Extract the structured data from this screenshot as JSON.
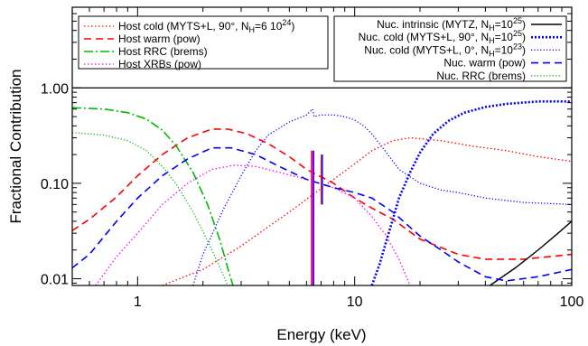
{
  "chart_data": {
    "type": "line",
    "xlabel": "Energy (keV)",
    "ylabel": "Fractional Contribution",
    "xscale": "log",
    "yscale": "log",
    "xlim": [
      0.5,
      100
    ],
    "ylim": [
      0.0085,
      7
    ],
    "x_ticks": [
      {
        "value": 1,
        "label": "1"
      },
      {
        "value": 10,
        "label": "10"
      },
      {
        "value": 100,
        "label": "100"
      }
    ],
    "y_ticks": [
      {
        "value": 0.01,
        "label": "0.01"
      },
      {
        "value": 0.1,
        "label": "0.10"
      },
      {
        "value": 1,
        "label": "1.00"
      }
    ],
    "reference_line": 1.0,
    "legend_left": [
      {
        "id": "host_cold",
        "label": "Host cold (MYTS+L, 90°, N",
        "sub": "H",
        "suffix": "=6 10",
        "sup": "24",
        "tail": ")"
      },
      {
        "id": "host_warm",
        "label": "Host warm (pow)"
      },
      {
        "id": "host_rrc",
        "label": "Host RRC (brems)"
      },
      {
        "id": "host_xrb",
        "label": "Host XRBs (pow)"
      }
    ],
    "legend_right": [
      {
        "id": "nuc_intrinsic",
        "label": "Nuc. intrinsic (MYTZ, N",
        "sub": "H",
        "suffix": "=10",
        "sup": "25",
        "tail": ")"
      },
      {
        "id": "nuc_cold90",
        "label": "Nuc. cold (MYTS+L, 90°, N",
        "sub": "H",
        "suffix": "=10",
        "sup": "25",
        "tail": ")"
      },
      {
        "id": "nuc_cold0",
        "label": "Nuc. cold (MYTS+L,  0°, N",
        "sub": "H",
        "suffix": "=10",
        "sup": "23",
        "tail": ")"
      },
      {
        "id": "nuc_warm",
        "label": "Nuc. warm (pow)"
      },
      {
        "id": "nuc_rrc",
        "label": "Nuc. RRC (brems)"
      }
    ],
    "series": [
      {
        "id": "host_cold",
        "color": "#ff0000",
        "dash": "1.5,2.5",
        "width": 1.3,
        "points": [
          [
            1.3,
            0.0085
          ],
          [
            2,
            0.0125
          ],
          [
            3,
            0.022
          ],
          [
            4,
            0.035
          ],
          [
            5,
            0.05
          ],
          [
            6,
            0.068
          ],
          [
            8,
            0.11
          ],
          [
            10,
            0.16
          ],
          [
            12,
            0.22
          ],
          [
            15,
            0.28
          ],
          [
            18,
            0.3
          ],
          [
            25,
            0.28
          ],
          [
            35,
            0.245
          ],
          [
            50,
            0.22
          ],
          [
            70,
            0.19
          ],
          [
            100,
            0.17
          ]
        ]
      },
      {
        "id": "host_warm",
        "color": "#ff0000",
        "dash": "8,5",
        "width": 1.6,
        "points": [
          [
            0.5,
            0.032
          ],
          [
            0.6,
            0.042
          ],
          [
            0.8,
            0.072
          ],
          [
            1,
            0.12
          ],
          [
            1.3,
            0.2
          ],
          [
            1.7,
            0.3
          ],
          [
            2.2,
            0.37
          ],
          [
            2.6,
            0.37
          ],
          [
            3.2,
            0.33
          ],
          [
            4,
            0.26
          ],
          [
            5,
            0.19
          ],
          [
            6,
            0.14
          ],
          [
            8,
            0.1
          ],
          [
            10,
            0.07
          ],
          [
            12,
            0.055
          ],
          [
            15,
            0.042
          ],
          [
            20,
            0.026
          ],
          [
            30,
            0.018
          ],
          [
            40,
            0.016
          ],
          [
            60,
            0.016
          ],
          [
            100,
            0.018
          ]
        ]
      },
      {
        "id": "host_rrc",
        "color": "#00bb00",
        "dash": "10,3,2,3",
        "width": 1.6,
        "points": [
          [
            0.5,
            0.62
          ],
          [
            0.7,
            0.6
          ],
          [
            0.9,
            0.55
          ],
          [
            1.1,
            0.47
          ],
          [
            1.3,
            0.36
          ],
          [
            1.5,
            0.25
          ],
          [
            1.8,
            0.13
          ],
          [
            2.1,
            0.06
          ],
          [
            2.4,
            0.025
          ],
          [
            2.6,
            0.013
          ],
          [
            2.75,
            0.0085
          ]
        ]
      },
      {
        "id": "host_xrb",
        "color": "#ff00ff",
        "dash": "1.5,2.5",
        "width": 1.3,
        "points": [
          [
            0.64,
            0.0085
          ],
          [
            0.8,
            0.017
          ],
          [
            1,
            0.03
          ],
          [
            1.3,
            0.06
          ],
          [
            1.7,
            0.1
          ],
          [
            2.2,
            0.14
          ],
          [
            2.8,
            0.155
          ],
          [
            3.5,
            0.15
          ],
          [
            4.5,
            0.13
          ],
          [
            6,
            0.11
          ],
          [
            8,
            0.09
          ],
          [
            10,
            0.07
          ],
          [
            12,
            0.045
          ],
          [
            14,
            0.028
          ],
          [
            16,
            0.016
          ],
          [
            18,
            0.0085
          ]
        ]
      },
      {
        "id": "nuc_intrinsic",
        "color": "#000000",
        "dash": "",
        "width": 1.4,
        "points": [
          [
            42,
            0.0085
          ],
          [
            55,
            0.013
          ],
          [
            70,
            0.02
          ],
          [
            85,
            0.029
          ],
          [
            100,
            0.04
          ]
        ]
      },
      {
        "id": "nuc_cold90",
        "color": "#0000ff",
        "dash": "2,2",
        "width": 2.6,
        "points": [
          [
            12,
            0.0085
          ],
          [
            13,
            0.014
          ],
          [
            14,
            0.025
          ],
          [
            15,
            0.042
          ],
          [
            16,
            0.07
          ],
          [
            18,
            0.13
          ],
          [
            20,
            0.21
          ],
          [
            23,
            0.33
          ],
          [
            27,
            0.45
          ],
          [
            32,
            0.55
          ],
          [
            40,
            0.63
          ],
          [
            50,
            0.68
          ],
          [
            70,
            0.72
          ],
          [
            100,
            0.72
          ]
        ]
      },
      {
        "id": "nuc_cold0",
        "color": "#0000ff",
        "dash": "1.2,2.2",
        "width": 1.3,
        "points": [
          [
            1.8,
            0.0085
          ],
          [
            2,
            0.018
          ],
          [
            2.5,
            0.055
          ],
          [
            3,
            0.12
          ],
          [
            3.5,
            0.22
          ],
          [
            4,
            0.32
          ],
          [
            5,
            0.44
          ],
          [
            6,
            0.52
          ],
          [
            6.4,
            0.6
          ],
          [
            6.5,
            0.5
          ],
          [
            7,
            0.52
          ],
          [
            8,
            0.52
          ],
          [
            9,
            0.5
          ],
          [
            10,
            0.46
          ],
          [
            11,
            0.4
          ],
          [
            12,
            0.33
          ],
          [
            14,
            0.21
          ],
          [
            16,
            0.14
          ],
          [
            20,
            0.1
          ],
          [
            25,
            0.085
          ],
          [
            30,
            0.08
          ],
          [
            40,
            0.07
          ],
          [
            60,
            0.063
          ],
          [
            100,
            0.06
          ]
        ]
      },
      {
        "id": "nuc_warm",
        "color": "#0000ff",
        "dash": "8,5",
        "width": 1.6,
        "points": [
          [
            0.5,
            0.013
          ],
          [
            0.6,
            0.018
          ],
          [
            0.8,
            0.04
          ],
          [
            1,
            0.07
          ],
          [
            1.3,
            0.12
          ],
          [
            1.7,
            0.18
          ],
          [
            2.2,
            0.235
          ],
          [
            2.7,
            0.235
          ],
          [
            3.5,
            0.2
          ],
          [
            4.5,
            0.15
          ],
          [
            6,
            0.11
          ],
          [
            8,
            0.09
          ],
          [
            10,
            0.08
          ],
          [
            12,
            0.07
          ],
          [
            15,
            0.05
          ],
          [
            20,
            0.028
          ],
          [
            25,
            0.02
          ],
          [
            30,
            0.015
          ],
          [
            40,
            0.0105
          ],
          [
            50,
            0.0095
          ],
          [
            70,
            0.0105
          ],
          [
            100,
            0.0125
          ]
        ]
      },
      {
        "id": "nuc_rrc",
        "color": "#00bb00",
        "dash": "1.2,2.2",
        "width": 1.3,
        "points": [
          [
            0.5,
            0.34
          ],
          [
            0.7,
            0.32
          ],
          [
            0.9,
            0.28
          ],
          [
            1.1,
            0.22
          ],
          [
            1.3,
            0.15
          ],
          [
            1.5,
            0.1
          ],
          [
            1.8,
            0.05
          ],
          [
            2.1,
            0.025
          ],
          [
            2.4,
            0.013
          ],
          [
            2.6,
            0.0085
          ]
        ]
      }
    ],
    "line_spikes": [
      {
        "x": 6.4,
        "ymin": 0.0085,
        "ymax": 0.22,
        "colors": [
          "#ff0000",
          "#ff00ff",
          "#0000ff"
        ]
      },
      {
        "x": 7.06,
        "ymin": 0.06,
        "ymax": 0.2,
        "colors": [
          "#ff0000",
          "#0000ff"
        ]
      }
    ]
  }
}
